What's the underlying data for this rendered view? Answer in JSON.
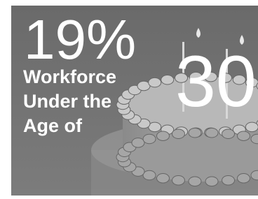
{
  "headline": {
    "percent": "19%",
    "lines": [
      "Workforce",
      "Under the",
      "Age of"
    ],
    "number": "30"
  }
}
